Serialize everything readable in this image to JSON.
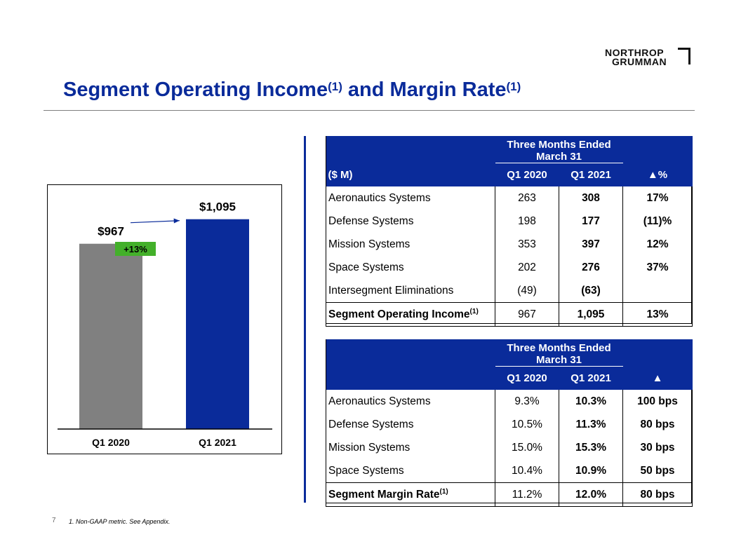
{
  "logo": {
    "line1": "NORTHROP",
    "line2": "GRUMMAN"
  },
  "title": {
    "main": "Segment Operating Income",
    "sup1": "(1)",
    "mid": " and Margin Rate",
    "sup2": "(1)"
  },
  "chart_data": {
    "type": "bar",
    "categories": [
      "Q1 2020",
      "Q1 2021"
    ],
    "values": [
      967,
      1095
    ],
    "value_labels": [
      "$967",
      "$1,095"
    ],
    "colors": [
      "#808080",
      "#0a2b9a"
    ],
    "ylim": [
      0,
      1200
    ],
    "annotation": {
      "text": "+13%",
      "color": "#43b02a"
    },
    "title": "",
    "xlabel": "",
    "ylabel": ""
  },
  "income_table": {
    "group_header": "Three Months Ended March 31",
    "unit_label": "($ M)",
    "columns": [
      "Q1 2020",
      "Q1 2021",
      "▲%"
    ],
    "rows": [
      {
        "label": "Aeronautics Systems",
        "q1_2020": "263",
        "q1_2021": "308",
        "change": "17%"
      },
      {
        "label": "Defense Systems",
        "q1_2020": "198",
        "q1_2021": "177",
        "change": "(11)%"
      },
      {
        "label": "Mission Systems",
        "q1_2020": "353",
        "q1_2021": "397",
        "change": "12%"
      },
      {
        "label": "Space Systems",
        "q1_2020": "202",
        "q1_2021": "276",
        "change": "37%"
      },
      {
        "label": "Intersegment Eliminations",
        "q1_2020": "(49)",
        "q1_2021": "(63)",
        "change": ""
      }
    ],
    "total": {
      "label": "Segment Operating Income",
      "sup": "(1)",
      "q1_2020": "967",
      "q1_2021": "1,095",
      "change": "13%"
    }
  },
  "margin_table": {
    "group_header": "Three Months Ended March 31",
    "columns": [
      "Q1 2020",
      "Q1 2021",
      "▲"
    ],
    "rows": [
      {
        "label": "Aeronautics Systems",
        "q1_2020": "9.3%",
        "q1_2021": "10.3%",
        "change": "100 bps"
      },
      {
        "label": "Defense Systems",
        "q1_2020": "10.5%",
        "q1_2021": "11.3%",
        "change": "80 bps"
      },
      {
        "label": "Mission Systems",
        "q1_2020": "15.0%",
        "q1_2021": "15.3%",
        "change": "30 bps"
      },
      {
        "label": "Space Systems",
        "q1_2020": "10.4%",
        "q1_2021": "10.9%",
        "change": "50 bps"
      }
    ],
    "total": {
      "label": "Segment Margin Rate",
      "sup": "(1)",
      "q1_2020": "11.2%",
      "q1_2021": "12.0%",
      "change": "80 bps"
    }
  },
  "footer": {
    "page_number": "7",
    "footnote": "1.  Non-GAAP metric. See Appendix."
  }
}
